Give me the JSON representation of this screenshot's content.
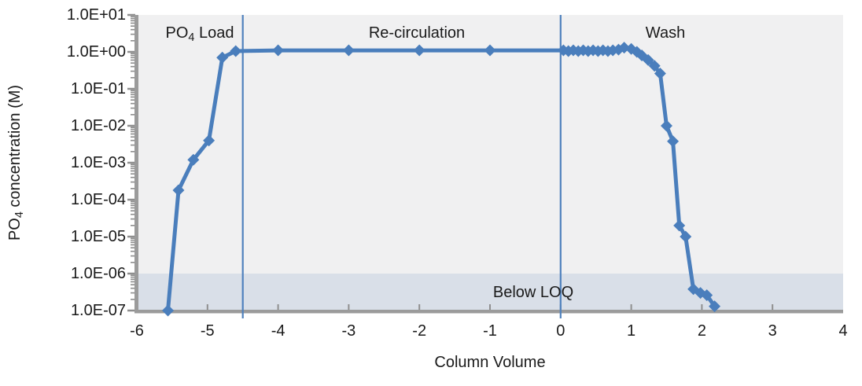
{
  "figure": {
    "x_axis_title": "Column Volume",
    "y_axis_title": {
      "prefix": "PO",
      "sub": "4",
      "suffix": " concentration (M)"
    },
    "annotations": {
      "load": {
        "prefix": "PO",
        "sub": "4",
        "suffix": " Load"
      },
      "recirculation": "Re-circulation",
      "wash": "Wash",
      "below_loq": "Below LOQ"
    }
  },
  "chart_data": {
    "type": "line",
    "title": "",
    "xlabel": "Column Volume",
    "ylabel": "PO4 concentration (M)",
    "xlim": [
      -6,
      4
    ],
    "ylim": [
      1e-07,
      10
    ],
    "y_scale": "log",
    "grid": false,
    "legend": "none",
    "x_ticks": [
      {
        "label": "-6",
        "value": -6
      },
      {
        "label": "-5",
        "value": -5
      },
      {
        "label": "-4",
        "value": -4
      },
      {
        "label": "-3",
        "value": -3
      },
      {
        "label": "-2",
        "value": -2
      },
      {
        "label": "-1",
        "value": -1
      },
      {
        "label": "0",
        "value": 0
      },
      {
        "label": "1",
        "value": 1
      },
      {
        "label": "2",
        "value": 2
      },
      {
        "label": "3",
        "value": 3
      },
      {
        "label": "4",
        "value": 4
      }
    ],
    "y_ticks": [
      {
        "label": "1.0E+01",
        "value": 10.0
      },
      {
        "label": "1.0E+00",
        "value": 1.0
      },
      {
        "label": "1.0E-01",
        "value": 0.1
      },
      {
        "label": "1.0E-02",
        "value": 0.01
      },
      {
        "label": "1.0E-03",
        "value": 0.001
      },
      {
        "label": "1.0E-04",
        "value": 0.0001
      },
      {
        "label": "1.0E-05",
        "value": 1e-05
      },
      {
        "label": "1.0E-06",
        "value": 1e-06
      },
      {
        "label": "1.0E-07",
        "value": 1e-07
      }
    ],
    "phase_boundaries_x": [
      -4.5,
      0
    ],
    "phases": [
      {
        "label": "PO4 Load",
        "x_range": [
          -6,
          -4.5
        ]
      },
      {
        "label": "Re-circulation",
        "x_range": [
          -4.5,
          0
        ]
      },
      {
        "label": "Wash",
        "x_range": [
          0,
          4
        ]
      }
    ],
    "loq_band": {
      "y_from": 1e-07,
      "y_to": 1e-06,
      "label": "Below LOQ"
    },
    "series": [
      {
        "name": "PO4 concentration (M)",
        "marker": "diamond",
        "points": [
          [
            -5.56,
            1e-07
          ],
          [
            -5.41,
            0.00018
          ],
          [
            -5.2,
            0.0012
          ],
          [
            -4.98,
            0.004
          ],
          [
            -4.79,
            0.7
          ],
          [
            -4.6,
            1.05
          ],
          [
            -4.0,
            1.1
          ],
          [
            -3.0,
            1.1
          ],
          [
            -2.0,
            1.1
          ],
          [
            -1.0,
            1.1
          ],
          [
            0.04,
            1.1
          ],
          [
            0.11,
            1.05
          ],
          [
            0.18,
            1.1
          ],
          [
            0.25,
            1.05
          ],
          [
            0.32,
            1.1
          ],
          [
            0.39,
            1.05
          ],
          [
            0.46,
            1.1
          ],
          [
            0.53,
            1.05
          ],
          [
            0.6,
            1.1
          ],
          [
            0.67,
            1.05
          ],
          [
            0.74,
            1.1
          ],
          [
            0.82,
            1.15
          ],
          [
            0.9,
            1.3
          ],
          [
            1.0,
            1.2
          ],
          [
            1.08,
            1.0
          ],
          [
            1.15,
            0.8
          ],
          [
            1.24,
            0.6
          ],
          [
            1.33,
            0.42
          ],
          [
            1.41,
            0.26
          ],
          [
            1.5,
            0.01
          ],
          [
            1.59,
            0.0038
          ],
          [
            1.68,
            2e-05
          ],
          [
            1.77,
            1e-05
          ],
          [
            1.88,
            3.8e-07
          ],
          [
            1.98,
            3e-07
          ],
          [
            2.07,
            2.6e-07
          ],
          [
            2.18,
            1.3e-07
          ]
        ]
      }
    ],
    "colors": {
      "series_line": "#4a7ebc",
      "boundary_line": "#4f81bd",
      "plot_background": "#f0f0f1",
      "loq_band_fill": "#d9dfe8",
      "axis": "#9b9b9b",
      "tick": "#8f8f8f",
      "text": "#1a1a1a"
    }
  }
}
